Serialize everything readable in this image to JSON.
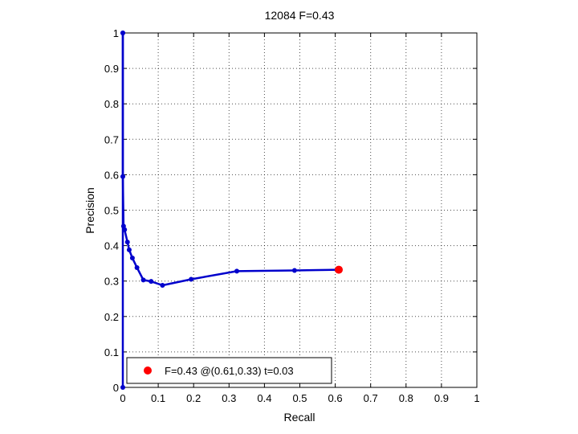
{
  "chart_data": {
    "type": "line",
    "title": "12084 F=0.43",
    "xlabel": "Recall",
    "ylabel": "Precision",
    "xlim": [
      0,
      1
    ],
    "ylim": [
      0,
      1
    ],
    "grid": true,
    "x_ticks": [
      "0",
      "0.1",
      "0.2",
      "0.3",
      "0.4",
      "0.5",
      "0.6",
      "0.7",
      "0.8",
      "0.9",
      "1"
    ],
    "y_ticks": [
      "0",
      "0.1",
      "0.2",
      "0.3",
      "0.4",
      "0.5",
      "0.6",
      "0.7",
      "0.8",
      "0.9",
      "1"
    ],
    "series": [
      {
        "color": "#0000cc",
        "points": [
          [
            0.0,
            1.0
          ],
          [
            0.0,
            0.595
          ],
          [
            0.002,
            0.455
          ],
          [
            0.005,
            0.445
          ],
          [
            0.013,
            0.41
          ],
          [
            0.018,
            0.388
          ],
          [
            0.027,
            0.365
          ],
          [
            0.04,
            0.338
          ],
          [
            0.058,
            0.303
          ],
          [
            0.08,
            0.299
          ],
          [
            0.112,
            0.288
          ],
          [
            0.193,
            0.305
          ],
          [
            0.322,
            0.328
          ],
          [
            0.485,
            0.33
          ],
          [
            0.61,
            0.332
          ]
        ],
        "tail": [
          [
            0.0,
            1.0
          ],
          [
            0.0,
            0.0
          ]
        ]
      }
    ],
    "best_point": {
      "x": 0.61,
      "y": 0.332,
      "color": "#ff0000"
    },
    "legend": {
      "position": "bottom-left",
      "label": "F=0.43 @(0.61,0.33) t=0.03"
    }
  }
}
